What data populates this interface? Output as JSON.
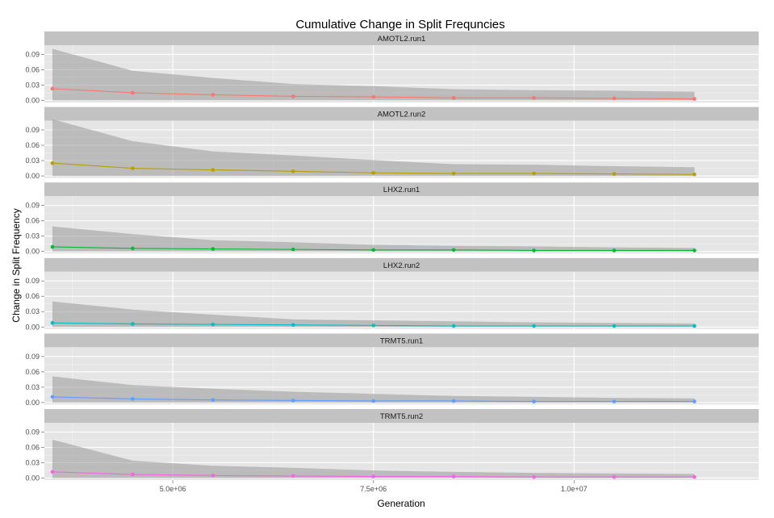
{
  "chart_data": {
    "type": "line",
    "title": "Cumulative Change in Split Frequncies",
    "xlabel": "Generation",
    "ylabel": "Change in Split Frequency",
    "xlim": [
      3400000,
      12300000
    ],
    "ylim": [
      -0.004,
      0.108
    ],
    "x": [
      3500000,
      4500000,
      5500000,
      6500000,
      7500000,
      8500000,
      9500000,
      10500000,
      11500000
    ],
    "x_ticks": [
      5000000,
      7500000,
      10000000
    ],
    "x_tick_labels": [
      "5.0e+06",
      "7.5e+06",
      "1.0e+07"
    ],
    "y_ticks": [
      0.0,
      0.03,
      0.06,
      0.09
    ],
    "y_tick_labels": [
      "0.00",
      "0.03",
      "0.06",
      "0.09"
    ],
    "grid": true,
    "legend": "none",
    "series": [
      {
        "name": "AMOTL2.run1",
        "color": "#F8766D",
        "values": [
          0.023,
          0.015,
          0.011,
          0.008,
          0.007,
          0.005,
          0.005,
          0.004,
          0.003
        ],
        "band_upper": [
          0.101,
          0.058,
          0.044,
          0.032,
          0.028,
          0.022,
          0.02,
          0.019,
          0.017
        ]
      },
      {
        "name": "AMOTL2.run2",
        "color": "#B79F00",
        "values": [
          0.025,
          0.015,
          0.012,
          0.009,
          0.006,
          0.005,
          0.005,
          0.004,
          0.003
        ],
        "band_upper": [
          0.111,
          0.068,
          0.048,
          0.04,
          0.031,
          0.023,
          0.022,
          0.019,
          0.017
        ]
      },
      {
        "name": "LHX2.run1",
        "color": "#00BA38",
        "values": [
          0.009,
          0.006,
          0.005,
          0.004,
          0.003,
          0.003,
          0.002,
          0.002,
          0.002
        ],
        "band_upper": [
          0.049,
          0.034,
          0.022,
          0.018,
          0.013,
          0.011,
          0.01,
          0.008,
          0.007
        ]
      },
      {
        "name": "LHX2.run2",
        "color": "#00BFC4",
        "values": [
          0.008,
          0.006,
          0.005,
          0.004,
          0.003,
          0.002,
          0.002,
          0.002,
          0.002
        ],
        "band_upper": [
          0.05,
          0.034,
          0.024,
          0.015,
          0.013,
          0.011,
          0.009,
          0.008,
          0.007
        ]
      },
      {
        "name": "TRMT5.run1",
        "color": "#619CFF",
        "values": [
          0.011,
          0.007,
          0.005,
          0.004,
          0.003,
          0.003,
          0.002,
          0.002,
          0.002
        ],
        "band_upper": [
          0.051,
          0.034,
          0.027,
          0.021,
          0.017,
          0.013,
          0.011,
          0.009,
          0.008
        ]
      },
      {
        "name": "TRMT5.run2",
        "color": "#F564E3",
        "values": [
          0.012,
          0.007,
          0.005,
          0.004,
          0.003,
          0.003,
          0.002,
          0.002,
          0.002
        ],
        "band_upper": [
          0.075,
          0.034,
          0.024,
          0.02,
          0.015,
          0.012,
          0.01,
          0.009,
          0.008
        ]
      }
    ]
  }
}
